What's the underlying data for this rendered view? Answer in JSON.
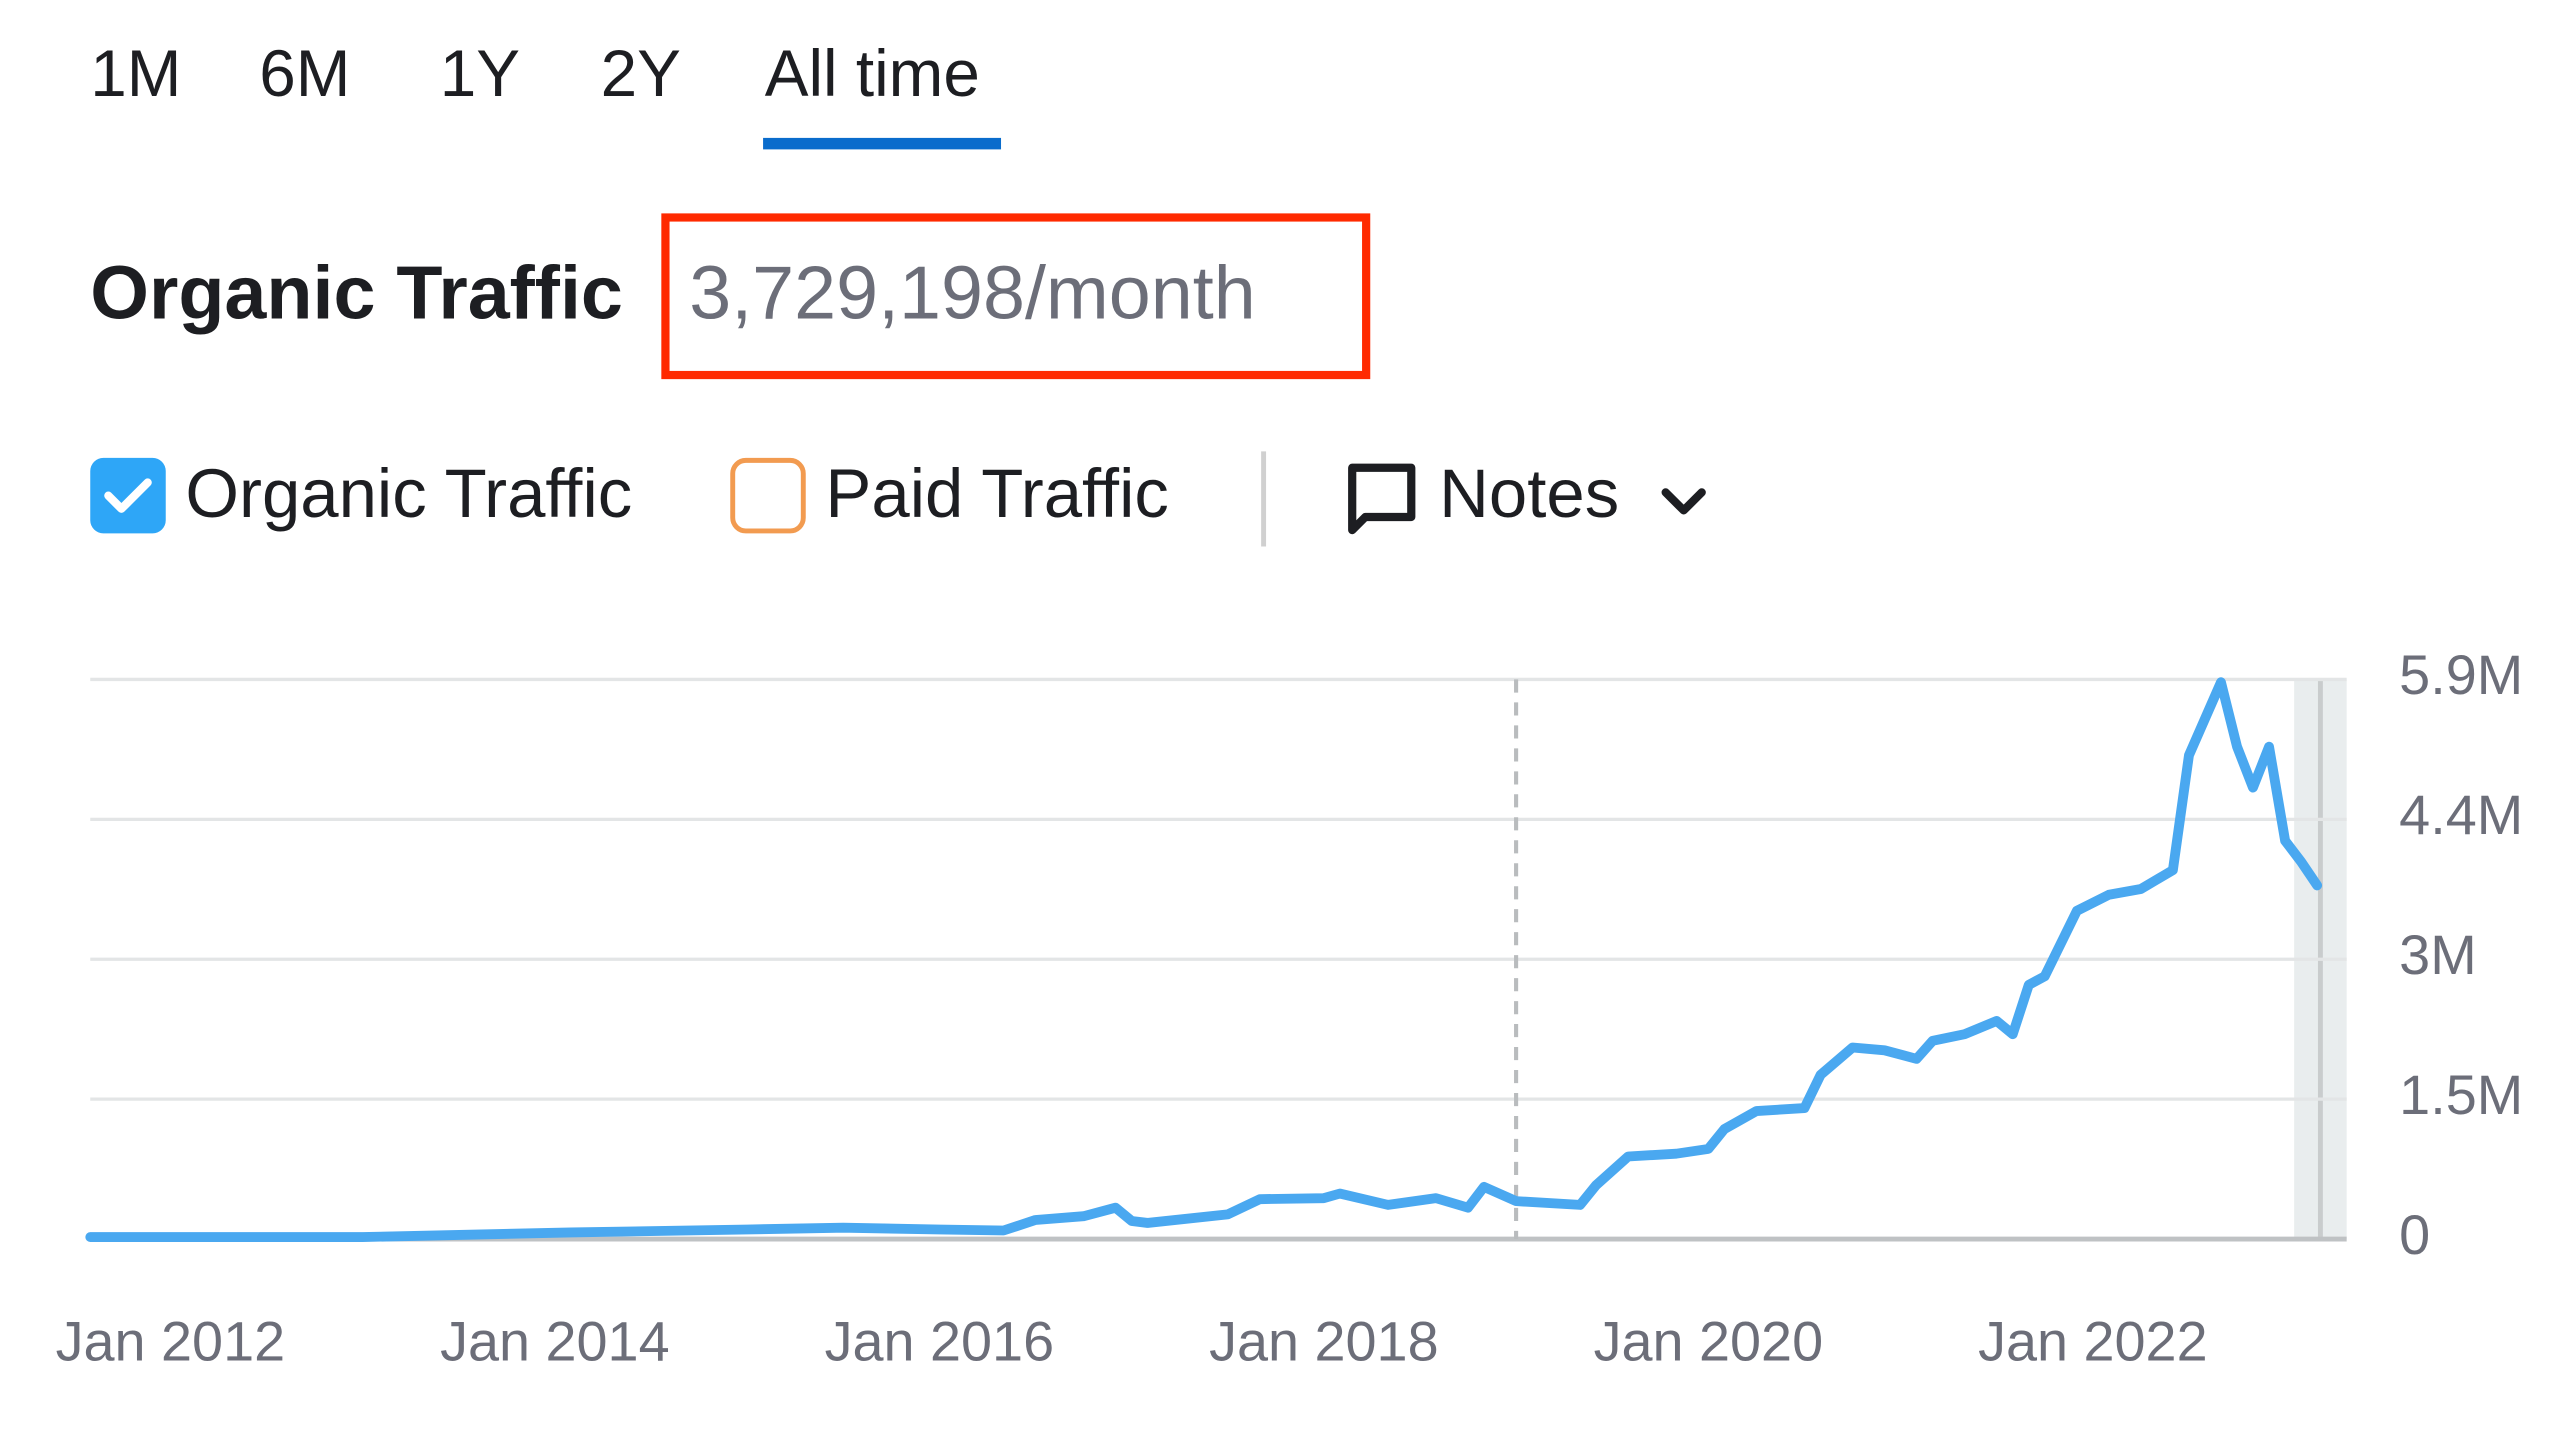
{
  "tabs": [
    "1M",
    "6M",
    "1Y",
    "2Y",
    "All time"
  ],
  "header": {
    "title": "Organic Traffic",
    "value": "3,729,198/month"
  },
  "controls": {
    "paid": "Paid Traffic",
    "notes": "Notes"
  },
  "chart_data": {
    "type": "line",
    "x": [
      "2011-08",
      "2013-01",
      "2014-02",
      "2015-01",
      "2015-07",
      "2016-01",
      "2016-05",
      "2016-07",
      "2016-10",
      "2016-12",
      "2017-01",
      "2017-02",
      "2017-07",
      "2017-09",
      "2018-01",
      "2018-02",
      "2018-05",
      "2018-08",
      "2018-10",
      "2018-11",
      "2019-01",
      "2019-05",
      "2019-06",
      "2019-08",
      "2019-11",
      "2020-01",
      "2020-02",
      "2020-04",
      "2020-07",
      "2020-08",
      "2020-10",
      "2020-12",
      "2021-02",
      "2021-03",
      "2021-05",
      "2021-07",
      "2021-08",
      "2021-09",
      "2021-10",
      "2021-12",
      "2022-02",
      "2022-04",
      "2022-06",
      "2022-07",
      "2022-09",
      "2022-10",
      "2022-11",
      "2022-12",
      "2023-01",
      "2023-02",
      "2023-03"
    ],
    "series": [
      {
        "name": "Organic Traffic",
        "color": "#4aa8f0",
        "values": [
          20000,
          20000,
          70000,
          100000,
          120000,
          100000,
          90000,
          200000,
          240000,
          330000,
          190000,
          170000,
          260000,
          420000,
          430000,
          480000,
          360000,
          430000,
          330000,
          550000,
          400000,
          360000,
          570000,
          870000,
          900000,
          950000,
          1160000,
          1350000,
          1380000,
          1730000,
          2020000,
          1990000,
          1900000,
          2090000,
          2160000,
          2300000,
          2160000,
          2680000,
          2770000,
          3460000,
          3630000,
          3690000,
          3890000,
          5100000,
          5870000,
          5190000,
          4760000,
          5190000,
          4200000,
          3980000,
          3729198
        ]
      }
    ],
    "xlim": [
      "2011-08",
      "2023-03"
    ],
    "xticks": [
      {
        "value": "2012-01",
        "label": "Jan 2012"
      },
      {
        "value": "2014-01",
        "label": "Jan 2014"
      },
      {
        "value": "2016-01",
        "label": "Jan 2016"
      },
      {
        "value": "2018-01",
        "label": "Jan 2018"
      },
      {
        "value": "2020-01",
        "label": "Jan 2020"
      },
      {
        "value": "2022-01",
        "label": "Jan 2022"
      }
    ],
    "ylim": [
      0,
      5900000
    ],
    "yticks": [
      0,
      {
        "value": 1475000,
        "label": "1.5M"
      },
      {
        "value": 2950000,
        "label": "3M"
      },
      {
        "value": 4425000,
        "label": "4.4M"
      },
      {
        "value": 5900000,
        "label": "5.9M"
      }
    ],
    "vline": "2019-01",
    "grid": true
  }
}
